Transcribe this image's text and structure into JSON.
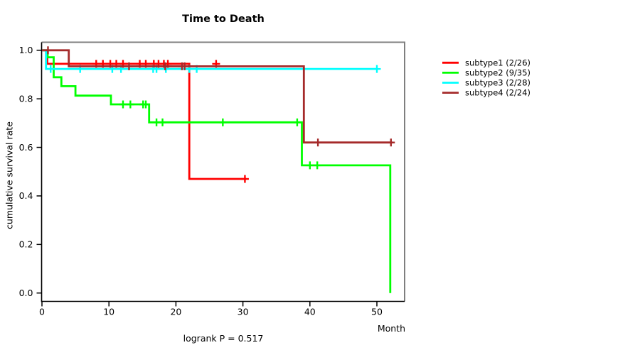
{
  "title": "Time to Death",
  "footer": "logrank P = 0.517",
  "chart_data": {
    "type": "line",
    "variant": "kaplan-meier-step",
    "title": "Time to Death",
    "xlabel": "Month",
    "ylabel": "cumulative survival rate",
    "xlim": [
      0,
      54
    ],
    "ylim": [
      0.0,
      1.0
    ],
    "xticks": [
      0,
      10,
      20,
      30,
      40,
      50
    ],
    "xtick_labels": [
      "0",
      "10",
      "20",
      "30",
      "40",
      "50"
    ],
    "yticks": [
      0.0,
      0.2,
      0.4,
      0.6,
      0.8,
      1.0
    ],
    "ytick_labels": [
      "0.0",
      "0.2",
      "0.4",
      "0.6",
      "0.8",
      "1.0"
    ],
    "grid": false,
    "legend_position": "right-outside",
    "annotation": "logrank P = 0.517",
    "series": [
      {
        "name": "subtype1 (2/26)",
        "id": "subtype1",
        "color": "#ff0000",
        "steps": [
          [
            0,
            1.0
          ],
          [
            0.8,
            1.0
          ],
          [
            0.8,
            0.944
          ],
          [
            22,
            0.944
          ],
          [
            22,
            0.47
          ],
          [
            30.5,
            0.47
          ]
        ],
        "censor_marks": [
          [
            8.1,
            0.944
          ],
          [
            9.1,
            0.944
          ],
          [
            10.2,
            0.944
          ],
          [
            11.1,
            0.944
          ],
          [
            12.1,
            0.944
          ],
          [
            14.6,
            0.944
          ],
          [
            15.5,
            0.944
          ],
          [
            16.7,
            0.944
          ],
          [
            17.4,
            0.944
          ],
          [
            18.2,
            0.944
          ],
          [
            18.8,
            0.944
          ],
          [
            26.0,
            0.944
          ],
          [
            30.3,
            0.47
          ]
        ]
      },
      {
        "name": "subtype2 (9/35)",
        "id": "subtype2",
        "color": "#00ff00",
        "steps": [
          [
            0,
            1.0
          ],
          [
            0.85,
            1.0
          ],
          [
            0.85,
            0.971
          ],
          [
            1.75,
            0.971
          ],
          [
            1.75,
            0.889
          ],
          [
            2.9,
            0.889
          ],
          [
            2.9,
            0.852
          ],
          [
            5.0,
            0.852
          ],
          [
            5.0,
            0.813
          ],
          [
            10.3,
            0.813
          ],
          [
            10.3,
            0.777
          ],
          [
            16.0,
            0.777
          ],
          [
            16.0,
            0.703
          ],
          [
            38.8,
            0.703
          ],
          [
            38.8,
            0.526
          ],
          [
            52.0,
            0.526
          ],
          [
            52.0,
            0.0
          ]
        ],
        "censor_marks": [
          [
            12.1,
            0.777
          ],
          [
            13.2,
            0.777
          ],
          [
            15.1,
            0.777
          ],
          [
            15.5,
            0.777
          ],
          [
            17.1,
            0.703
          ],
          [
            18.0,
            0.703
          ],
          [
            27.0,
            0.703
          ],
          [
            38.1,
            0.703
          ],
          [
            40.0,
            0.526
          ],
          [
            41.1,
            0.526
          ]
        ]
      },
      {
        "name": "subtype3 (2/28)",
        "id": "subtype3",
        "color": "#00ffff",
        "steps": [
          [
            0,
            1.0
          ],
          [
            0.6,
            1.0
          ],
          [
            0.6,
            0.923
          ],
          [
            50.0,
            0.923
          ]
        ],
        "censor_marks": [
          [
            1.3,
            0.923
          ],
          [
            5.7,
            0.923
          ],
          [
            10.5,
            0.923
          ],
          [
            11.8,
            0.923
          ],
          [
            16.6,
            0.923
          ],
          [
            17.1,
            0.923
          ],
          [
            18.5,
            0.923
          ],
          [
            22.0,
            0.923
          ],
          [
            23.1,
            0.923
          ],
          [
            50.0,
            0.923
          ]
        ]
      },
      {
        "name": "subtype4 (2/24)",
        "id": "subtype4",
        "color": "#a52a2a",
        "steps": [
          [
            0,
            1.0
          ],
          [
            4.0,
            1.0
          ],
          [
            4.0,
            0.934
          ],
          [
            39.1,
            0.934
          ],
          [
            39.1,
            0.62
          ],
          [
            52.3,
            0.62
          ]
        ],
        "censor_marks": [
          [
            0.9,
            1.0
          ],
          [
            13.0,
            0.934
          ],
          [
            18.4,
            0.934
          ],
          [
            20.9,
            0.934
          ],
          [
            21.3,
            0.934
          ],
          [
            41.2,
            0.62
          ],
          [
            52.1,
            0.62
          ]
        ]
      }
    ]
  },
  "colors": {
    "axis_dark": "#000000",
    "box_shadow": "#7f7f7f",
    "background": "#ffffff"
  }
}
